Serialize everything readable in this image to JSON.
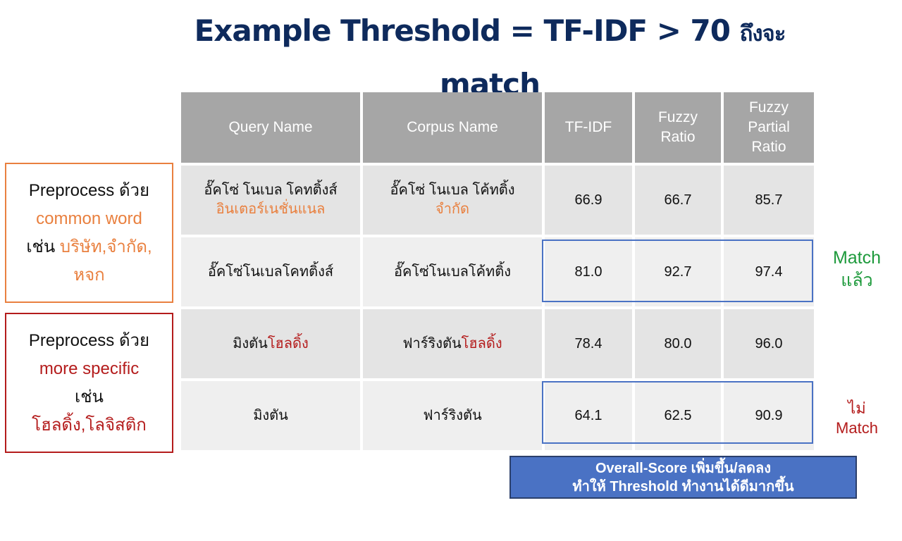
{
  "title": {
    "line1": "Example Threshold = TF-IDF > 70",
    "line1_suffix": "ถึงจะ",
    "line2": "match"
  },
  "table": {
    "headers": {
      "query": "Query Name",
      "corpus": "Corpus Name",
      "tfidf": "TF-IDF",
      "fuzzy_ratio_1": "Fuzzy",
      "fuzzy_ratio_2": "Ratio",
      "fuzzy_partial_1": "Fuzzy",
      "fuzzy_partial_2": "Partial",
      "fuzzy_partial_3": "Ratio"
    },
    "rows": [
      {
        "query_main": "อั๊คโซ่ โนเบล โคทติ้งส์",
        "query_extra": "อินเตอร์เนชั่นแนล",
        "corpus_main": "อั๊คโซ่ โนเบล โค้ทติ้ง",
        "corpus_extra": "จำกัด",
        "tfidf": "66.9",
        "fuzzy_ratio": "66.7",
        "fuzzy_partial": "85.7"
      },
      {
        "query_main": "อั๊คโซ่โนเบลโคทติ้งส์",
        "corpus_main": "อั๊คโซ่โนเบลโค้ทติ้ง",
        "tfidf": "81.0",
        "fuzzy_ratio": "92.7",
        "fuzzy_partial": "97.4"
      },
      {
        "query_main": "มิงตัน",
        "query_extra": "โฮลดิ้ง",
        "corpus_main": "ฟาร์ริงตัน",
        "corpus_extra": "โฮลดิ้ง",
        "tfidf": "78.4",
        "fuzzy_ratio": "80.0",
        "fuzzy_partial": "96.0"
      },
      {
        "query_main": "มิงตัน",
        "corpus_main": "ฟาร์ริงตัน",
        "tfidf": "64.1",
        "fuzzy_ratio": "62.5",
        "fuzzy_partial": "90.9"
      }
    ]
  },
  "side_notes": {
    "common": {
      "line1": "Preprocess ด้วย",
      "line2": "common word",
      "line3_prefix": "เช่น",
      "line3_words": "บริษัท,จำกัด,",
      "line4": "หจก"
    },
    "specific": {
      "line1": "Preprocess ด้วย",
      "line2": "more specific",
      "line3": "เช่น",
      "line4": "โฮลดิ้ง,โลจิสติก"
    }
  },
  "labels": {
    "match_1": "Match",
    "match_2": "แล้ว",
    "nomatch_1": "ไม่",
    "nomatch_2": "Match"
  },
  "score_box": {
    "line1": "Overall-Score เพิ่มขึ้น/ลดลง",
    "line2": "ทำให้ Threshold ทำงานได้ดีมากขึ้น"
  },
  "colors": {
    "title": "#0e2a5c",
    "header_bg": "#a6a6a6",
    "orange": "#e9803f",
    "red": "#b41c1c",
    "green": "#1e9a3c",
    "blue_box": "#4a72c4"
  }
}
